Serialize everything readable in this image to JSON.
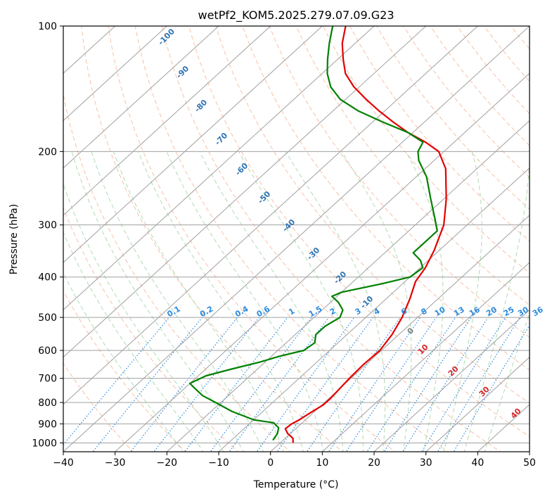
{
  "chart_data": {
    "type": "line",
    "subtype": "skew-t log-p",
    "title": "wetPf2_KOM5.2025.279.07.09.G23",
    "xlabel": "Temperature (°C)",
    "ylabel": "Pressure (hPa)",
    "xlim": [
      -40,
      50
    ],
    "ylim": [
      1050,
      100
    ],
    "y_scale": "log",
    "grid": true,
    "x_ticks": [
      -40,
      -30,
      -20,
      -10,
      0,
      10,
      20,
      30,
      40,
      50
    ],
    "y_ticks": [
      1000,
      900,
      800,
      700,
      600,
      500,
      400,
      300,
      200,
      100
    ],
    "colors": {
      "temperature": "#e30000",
      "dewpoint": "#008000",
      "dry_adiabats": "#f4a582",
      "moist_adiabats": "#8fcc8f",
      "mixing_ratio": "#2b8be0",
      "isotherms": "#a0a0a0",
      "isobars": "#a0a0a0",
      "wetbulb_potential": "#d9c3a8"
    },
    "series": [
      {
        "color": "#e30000",
        "points": [
          [
            2.5,
            1000
          ],
          [
            1.5,
            975
          ],
          [
            -0.5,
            950
          ],
          [
            -2.0,
            925
          ],
          [
            -1.8,
            900
          ],
          [
            -1.2,
            880
          ],
          [
            -0.6,
            850
          ],
          [
            0.3,
            810
          ],
          [
            0.3,
            780
          ],
          [
            0.0,
            740
          ],
          [
            -0.3,
            700
          ],
          [
            -0.5,
            650
          ],
          [
            -0.3,
            600
          ],
          [
            -1.3,
            550
          ],
          [
            -3.0,
            500
          ],
          [
            -5.5,
            450
          ],
          [
            -8.0,
            410
          ],
          [
            -9.0,
            380
          ],
          [
            -11.0,
            345
          ],
          [
            -14.5,
            300
          ],
          [
            -19.5,
            260
          ],
          [
            -26.0,
            220
          ],
          [
            -31.0,
            200
          ],
          [
            -35.5,
            190
          ],
          [
            -41.0,
            180
          ],
          [
            -46.0,
            170
          ],
          [
            -51.0,
            160
          ],
          [
            -56.0,
            150
          ],
          [
            -61.0,
            140
          ],
          [
            -65.5,
            130
          ],
          [
            -69.0,
            120
          ],
          [
            -72.5,
            110
          ],
          [
            -75.5,
            100
          ]
        ]
      },
      {
        "color": "#008000",
        "points": [
          [
            -2.0,
            985
          ],
          [
            -2.5,
            950
          ],
          [
            -3.5,
            920
          ],
          [
            -5.5,
            895
          ],
          [
            -10.0,
            880
          ],
          [
            -16.0,
            840
          ],
          [
            -21.0,
            800
          ],
          [
            -25.0,
            770
          ],
          [
            -28.5,
            735
          ],
          [
            -30.0,
            720
          ],
          [
            -28.5,
            690
          ],
          [
            -25.0,
            665
          ],
          [
            -21.0,
            640
          ],
          [
            -18.5,
            620
          ],
          [
            -15.0,
            600
          ],
          [
            -14.5,
            575
          ],
          [
            -16.0,
            550
          ],
          [
            -16.0,
            525
          ],
          [
            -15.0,
            500
          ],
          [
            -16.0,
            480
          ],
          [
            -18.5,
            460
          ],
          [
            -21.0,
            445
          ],
          [
            -20.0,
            435
          ],
          [
            -14.0,
            415
          ],
          [
            -10.0,
            400
          ],
          [
            -9.5,
            380
          ],
          [
            -11.5,
            365
          ],
          [
            -14.5,
            350
          ],
          [
            -14.5,
            330
          ],
          [
            -14.5,
            310
          ],
          [
            -17.5,
            290
          ],
          [
            -22.5,
            260
          ],
          [
            -28.0,
            230
          ],
          [
            -33.0,
            210
          ],
          [
            -35.0,
            200
          ],
          [
            -36.0,
            190
          ],
          [
            -41.0,
            180
          ],
          [
            -48.0,
            170
          ],
          [
            -55.0,
            160
          ],
          [
            -61.0,
            150
          ],
          [
            -65.5,
            140
          ],
          [
            -69.0,
            130
          ],
          [
            -72.0,
            120
          ],
          [
            -75.0,
            110
          ],
          [
            -78.0,
            100
          ]
        ]
      }
    ],
    "moist_adiabat_labels": [
      "-100",
      "-90",
      "-80",
      "-70",
      "-60",
      "-50",
      "-40",
      "-30",
      "-20",
      "-10"
    ],
    "mixing_ratio_labels": [
      "0.1",
      "0.2",
      "0.4",
      "0.6",
      "1",
      "1.5",
      "2",
      "3",
      "4",
      "6",
      "8",
      "10",
      "13",
      "16",
      "20",
      "25",
      "30",
      "36"
    ],
    "wetbulb_label": "0",
    "dry_adiabat_labels": [
      "10",
      "20",
      "30",
      "40"
    ]
  }
}
